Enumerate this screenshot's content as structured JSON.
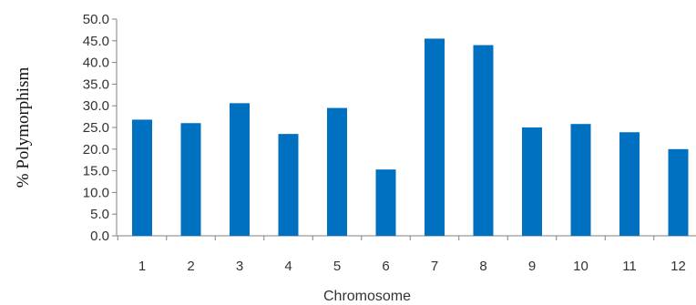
{
  "chart_data": {
    "type": "bar",
    "title": "",
    "xlabel": "Chromosome",
    "ylabel": "% Polymorphism",
    "categories": [
      "1",
      "2",
      "3",
      "4",
      "5",
      "6",
      "7",
      "8",
      "9",
      "10",
      "11",
      "12"
    ],
    "values": [
      26.8,
      26.0,
      30.6,
      23.5,
      29.5,
      15.3,
      45.5,
      44.0,
      25.0,
      25.8,
      23.9,
      20.0
    ],
    "ylim": [
      0,
      50
    ],
    "yticks": [
      "0.0",
      "5.0",
      "10.0",
      "15.0",
      "20.0",
      "25.0",
      "30.0",
      "35.0",
      "40.0",
      "45.0",
      "50.0"
    ],
    "grid": false,
    "legend": "none",
    "bar_color": "#0070C0"
  }
}
